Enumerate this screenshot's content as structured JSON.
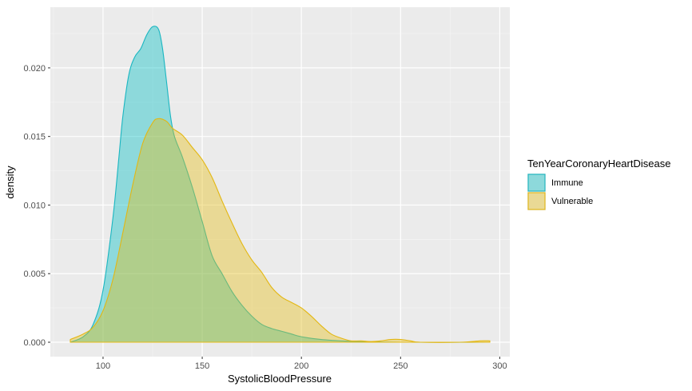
{
  "chart_data": {
    "type": "area",
    "subtype": "density",
    "title": "",
    "xlabel": "SystolicBloodPressure",
    "ylabel": "density",
    "xlim": [
      83.5,
      295
    ],
    "ylim": [
      0,
      0.0232
    ],
    "x_ticks": [
      100,
      150,
      200,
      250,
      300
    ],
    "y_ticks": [
      0.0,
      0.005,
      0.01,
      0.015,
      0.02
    ],
    "x_tick_labels": [
      "100",
      "150",
      "200",
      "250",
      "300"
    ],
    "y_tick_labels": [
      "0.000",
      "0.005",
      "0.010",
      "0.015",
      "0.020"
    ],
    "grid": true,
    "legend": {
      "title": "TenYearCoronaryHeartDisease",
      "position": "right"
    },
    "series": [
      {
        "name": "Immune",
        "fill": "#00bfc4",
        "fill_opacity": 0.4,
        "stroke": "#1ab6c1",
        "points": [
          [
            83.5,
            0.0
          ],
          [
            90,
            0.0004
          ],
          [
            95,
            0.0013
          ],
          [
            100,
            0.0038
          ],
          [
            105,
            0.0091
          ],
          [
            108,
            0.0135
          ],
          [
            110,
            0.0165
          ],
          [
            113,
            0.0195
          ],
          [
            116,
            0.0208
          ],
          [
            119,
            0.0214
          ],
          [
            122,
            0.0224
          ],
          [
            125,
            0.023
          ],
          [
            128,
            0.0228
          ],
          [
            130,
            0.0214
          ],
          [
            132,
            0.019
          ],
          [
            134,
            0.0165
          ],
          [
            136,
            0.015
          ],
          [
            140,
            0.0135
          ],
          [
            145,
            0.0113
          ],
          [
            150,
            0.0088
          ],
          [
            155,
            0.0063
          ],
          [
            160,
            0.005
          ],
          [
            165,
            0.0037
          ],
          [
            170,
            0.0027
          ],
          [
            175,
            0.0019
          ],
          [
            180,
            0.0013
          ],
          [
            185,
            0.001
          ],
          [
            190,
            0.0008
          ],
          [
            195,
            0.0006
          ],
          [
            200,
            0.0004
          ],
          [
            210,
            0.0002
          ],
          [
            220,
            0.0001
          ],
          [
            230,
            5e-05
          ],
          [
            250,
            0.0
          ],
          [
            295,
            0.0
          ]
        ]
      },
      {
        "name": "Vulnerable",
        "fill": "#e6be14",
        "fill_opacity": 0.4,
        "stroke": "#e3b713",
        "points": [
          [
            83.5,
            0.0002
          ],
          [
            90,
            0.0006
          ],
          [
            95,
            0.0011
          ],
          [
            100,
            0.0023
          ],
          [
            105,
            0.0046
          ],
          [
            110,
            0.008
          ],
          [
            115,
            0.0115
          ],
          [
            120,
            0.0145
          ],
          [
            125,
            0.016
          ],
          [
            128,
            0.0163
          ],
          [
            132,
            0.0161
          ],
          [
            135,
            0.0156
          ],
          [
            140,
            0.0151
          ],
          [
            145,
            0.0142
          ],
          [
            150,
            0.0133
          ],
          [
            155,
            0.012
          ],
          [
            160,
            0.0103
          ],
          [
            165,
            0.0087
          ],
          [
            170,
            0.0072
          ],
          [
            175,
            0.006
          ],
          [
            180,
            0.0051
          ],
          [
            185,
            0.004
          ],
          [
            190,
            0.0033
          ],
          [
            195,
            0.0029
          ],
          [
            200,
            0.0025
          ],
          [
            205,
            0.0019
          ],
          [
            210,
            0.0012
          ],
          [
            215,
            0.0006
          ],
          [
            220,
            0.0003
          ],
          [
            225,
            0.0001
          ],
          [
            230,
            0.0001
          ],
          [
            235,
            5e-05
          ],
          [
            240,
            0.0001
          ],
          [
            245,
            0.0002
          ],
          [
            250,
            0.0002
          ],
          [
            255,
            0.0001
          ],
          [
            260,
            0.0
          ],
          [
            280,
            0.0
          ],
          [
            290,
            0.0001
          ],
          [
            295,
            0.0001
          ]
        ]
      }
    ]
  }
}
